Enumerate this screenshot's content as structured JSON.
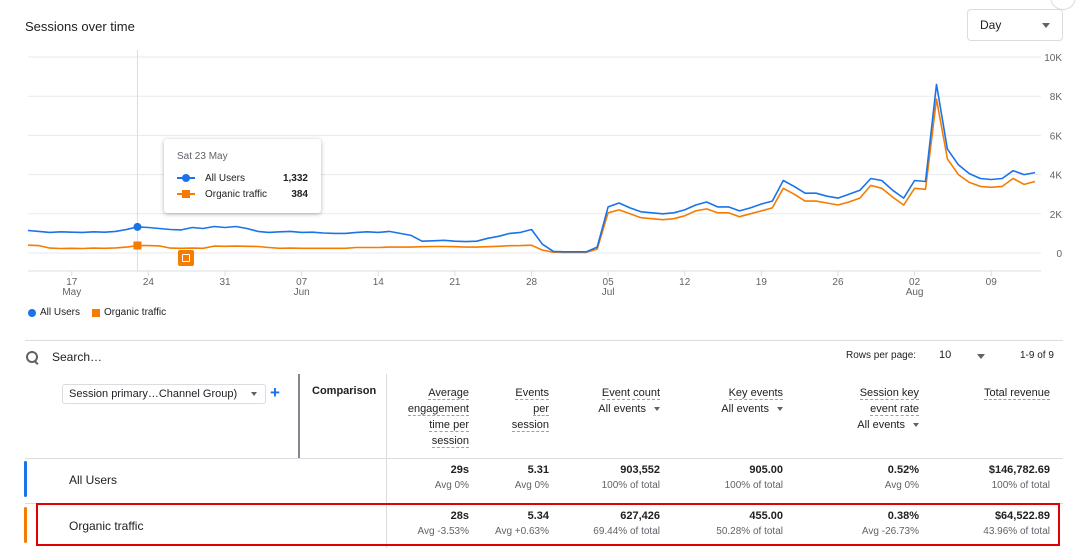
{
  "header": {
    "title": "Sessions over time",
    "period_select": "Day"
  },
  "chart_data": {
    "type": "line",
    "y_ticks": [
      "10K",
      "8K",
      "6K",
      "4K",
      "2K",
      "0"
    ],
    "ylim": [
      0,
      10000
    ],
    "x_ticks": [
      {
        "day": "17",
        "month": "May",
        "index": 4
      },
      {
        "day": "24",
        "month": "",
        "index": 11
      },
      {
        "day": "31",
        "month": "",
        "index": 18
      },
      {
        "day": "07",
        "month": "Jun",
        "index": 25
      },
      {
        "day": "14",
        "month": "",
        "index": 32
      },
      {
        "day": "21",
        "month": "",
        "index": 39
      },
      {
        "day": "28",
        "month": "",
        "index": 46
      },
      {
        "day": "05",
        "month": "Jul",
        "index": 53
      },
      {
        "day": "12",
        "month": "",
        "index": 60
      },
      {
        "day": "19",
        "month": "",
        "index": 67
      },
      {
        "day": "26",
        "month": "",
        "index": 74
      },
      {
        "day": "02",
        "month": "Aug",
        "index": 81
      },
      {
        "day": "09",
        "month": "",
        "index": 88
      }
    ],
    "series": [
      {
        "name": "All Users",
        "color": "#1a73e8",
        "values": [
          1150,
          1100,
          1050,
          1080,
          1060,
          1050,
          1080,
          1060,
          1100,
          1200,
          1332,
          1300,
          1250,
          1200,
          1180,
          1300,
          1250,
          1350,
          1300,
          1350,
          1250,
          1100,
          1050,
          1080,
          1100,
          1050,
          1060,
          1020,
          1000,
          1000,
          1050,
          1080,
          1050,
          1100,
          1000,
          900,
          600,
          620,
          650,
          600,
          580,
          600,
          750,
          850,
          1000,
          1050,
          1200,
          450,
          80,
          60,
          60,
          60,
          300,
          2350,
          2550,
          2300,
          2100,
          2050,
          2000,
          2050,
          2200,
          2450,
          2600,
          2350,
          2350,
          2150,
          2300,
          2500,
          2650,
          3700,
          3400,
          3050,
          3050,
          2900,
          2800,
          3000,
          3200,
          3800,
          3700,
          3200,
          2800,
          3700,
          3650,
          8600,
          5300,
          4500,
          4050,
          3800,
          3750,
          3800,
          4200,
          4000,
          4100
        ]
      },
      {
        "name": "Organic traffic",
        "color": "#f57c00",
        "values": [
          400,
          380,
          250,
          230,
          240,
          230,
          250,
          240,
          260,
          300,
          384,
          380,
          360,
          250,
          240,
          250,
          240,
          350,
          340,
          350,
          340,
          330,
          280,
          240,
          250,
          240,
          240,
          240,
          240,
          240,
          280,
          280,
          280,
          300,
          300,
          300,
          320,
          330,
          330,
          320,
          300,
          300,
          320,
          340,
          370,
          380,
          400,
          150,
          40,
          30,
          30,
          30,
          200,
          2050,
          2200,
          2000,
          1800,
          1750,
          1700,
          1750,
          1900,
          2150,
          2250,
          2050,
          2050,
          1850,
          2000,
          2150,
          2300,
          3300,
          3000,
          2650,
          2650,
          2550,
          2450,
          2600,
          2800,
          3450,
          3300,
          2850,
          2450,
          3300,
          3250,
          7850,
          4800,
          4000,
          3600,
          3400,
          3350,
          3400,
          3800,
          3500,
          3650
        ]
      }
    ],
    "tooltip": {
      "date": "Sat 23 May",
      "rows": [
        {
          "name": "All Users",
          "value": "1,332"
        },
        {
          "name": "Organic traffic",
          "value": "384"
        }
      ]
    },
    "legend": [
      "All Users",
      "Organic traffic"
    ]
  },
  "table": {
    "search_placeholder": "Search…",
    "rows_per_page_label": "Rows per page:",
    "rows_per_page_value": "10",
    "range": "1-9 of 9",
    "dimension_select": "Session primary…Channel Group)",
    "add_dimension": "+",
    "comparison_header": "Comparison",
    "metrics": [
      {
        "lines": [
          "Average",
          "engagement",
          "time per",
          "session"
        ],
        "sub": ""
      },
      {
        "lines": [
          "Events",
          "per",
          "session"
        ],
        "sub": ""
      },
      {
        "lines": [
          "Event count"
        ],
        "sub": "All events"
      },
      {
        "lines": [
          "Key events"
        ],
        "sub": "All events"
      },
      {
        "lines": [
          "Session key",
          "event rate"
        ],
        "sub": "All events"
      },
      {
        "lines": [
          "Total revenue"
        ],
        "sub": ""
      }
    ],
    "rows": [
      {
        "label": "All Users",
        "color": "#1a73e8",
        "cells": [
          {
            "value": "29s",
            "sub": "Avg 0%"
          },
          {
            "value": "5.31",
            "sub": "Avg 0%"
          },
          {
            "value": "903,552",
            "sub": "100% of total"
          },
          {
            "value": "905.00",
            "sub": "100% of total"
          },
          {
            "value": "0.52%",
            "sub": "Avg 0%"
          },
          {
            "value": "$146,782.69",
            "sub": "100% of total"
          }
        ]
      },
      {
        "label": "Organic traffic",
        "color": "#f57c00",
        "cells": [
          {
            "value": "28s",
            "sub": "Avg -3.53%"
          },
          {
            "value": "5.34",
            "sub": "Avg +0.63%"
          },
          {
            "value": "627,426",
            "sub": "69.44% of total"
          },
          {
            "value": "455.00",
            "sub": "50.28% of total"
          },
          {
            "value": "0.38%",
            "sub": "Avg -26.73%"
          },
          {
            "value": "$64,522.89",
            "sub": "43.96% of total"
          }
        ]
      }
    ]
  }
}
